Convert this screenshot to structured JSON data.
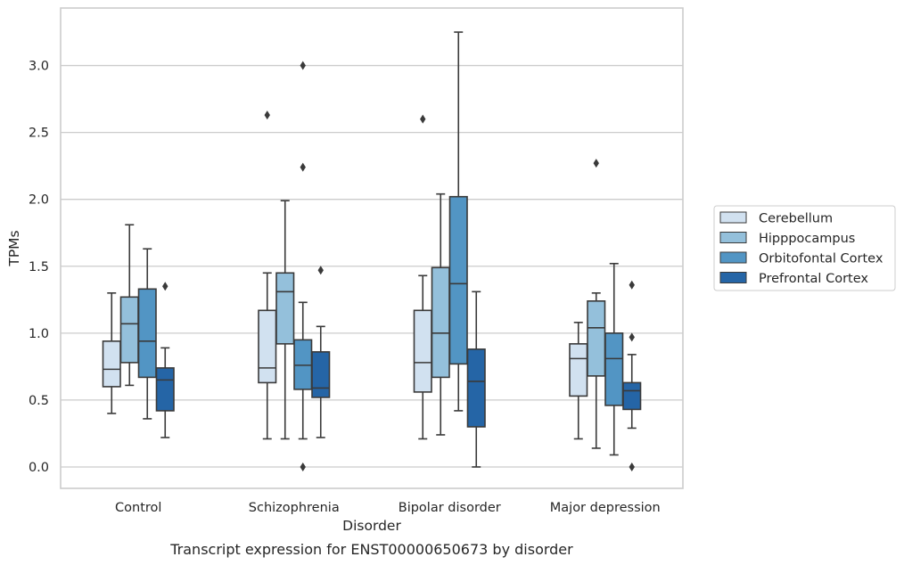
{
  "caption": "Transcript expression for ENST00000650673 by disorder",
  "chart_data": {
    "type": "box",
    "title": "",
    "xlabel": "Disorder",
    "ylabel": "TPMs",
    "ylim": [
      -0.16,
      3.43
    ],
    "yticks": [
      "0.0",
      "0.5",
      "1.0",
      "1.5",
      "2.0",
      "2.5",
      "3.0"
    ],
    "grid": "horizontal",
    "legend_position": "right",
    "categories": [
      "Control",
      "Schizophrenia",
      "Bipolar disorder",
      "Major depression"
    ],
    "series": [
      {
        "name": "Cerebellum",
        "color": "#d1e1f0",
        "boxes": [
          {
            "whislo": 0.4,
            "q1": 0.6,
            "med": 0.73,
            "q3": 0.94,
            "whishi": 1.3,
            "fliers": []
          },
          {
            "whislo": 0.21,
            "q1": 0.63,
            "med": 0.74,
            "q3": 1.17,
            "whishi": 1.45,
            "fliers": [
              2.63
            ]
          },
          {
            "whislo": 0.21,
            "q1": 0.56,
            "med": 0.78,
            "q3": 1.17,
            "whishi": 1.43,
            "fliers": [
              2.6
            ]
          },
          {
            "whislo": 0.21,
            "q1": 0.53,
            "med": 0.81,
            "q3": 0.92,
            "whishi": 1.08,
            "fliers": []
          }
        ]
      },
      {
        "name": "Hipppocampus",
        "color": "#94c0db",
        "boxes": [
          {
            "whislo": 0.61,
            "q1": 0.78,
            "med": 1.07,
            "q3": 1.27,
            "whishi": 1.81,
            "fliers": []
          },
          {
            "whislo": 0.21,
            "q1": 0.92,
            "med": 1.31,
            "q3": 1.45,
            "whishi": 1.99,
            "fliers": []
          },
          {
            "whislo": 0.24,
            "q1": 0.67,
            "med": 1.0,
            "q3": 1.49,
            "whishi": 2.04,
            "fliers": []
          },
          {
            "whislo": 0.14,
            "q1": 0.68,
            "med": 1.04,
            "q3": 1.24,
            "whishi": 1.3,
            "fliers": [
              2.27
            ]
          }
        ]
      },
      {
        "name": "Orbitofontal Cortex",
        "color": "#5295c4",
        "boxes": [
          {
            "whislo": 0.36,
            "q1": 0.67,
            "med": 0.94,
            "q3": 1.33,
            "whishi": 1.63,
            "fliers": []
          },
          {
            "whislo": 0.21,
            "q1": 0.58,
            "med": 0.76,
            "q3": 0.95,
            "whishi": 1.23,
            "fliers": [
              3.0,
              2.24,
              0.0
            ]
          },
          {
            "whislo": 0.42,
            "q1": 0.77,
            "med": 1.37,
            "q3": 2.02,
            "whishi": 3.25,
            "fliers": []
          },
          {
            "whislo": 0.09,
            "q1": 0.46,
            "med": 0.81,
            "q3": 1.0,
            "whishi": 1.52,
            "fliers": []
          }
        ]
      },
      {
        "name": "Prefrontal Cortex",
        "color": "#2565a6",
        "boxes": [
          {
            "whislo": 0.22,
            "q1": 0.42,
            "med": 0.65,
            "q3": 0.74,
            "whishi": 0.89,
            "fliers": [
              1.35
            ]
          },
          {
            "whislo": 0.22,
            "q1": 0.52,
            "med": 0.59,
            "q3": 0.86,
            "whishi": 1.05,
            "fliers": [
              1.47
            ]
          },
          {
            "whislo": 0.0,
            "q1": 0.3,
            "med": 0.64,
            "q3": 0.88,
            "whishi": 1.31,
            "fliers": []
          },
          {
            "whislo": 0.29,
            "q1": 0.43,
            "med": 0.57,
            "q3": 0.63,
            "whishi": 0.84,
            "fliers": [
              1.36,
              0.97,
              0.0
            ]
          }
        ]
      }
    ]
  }
}
